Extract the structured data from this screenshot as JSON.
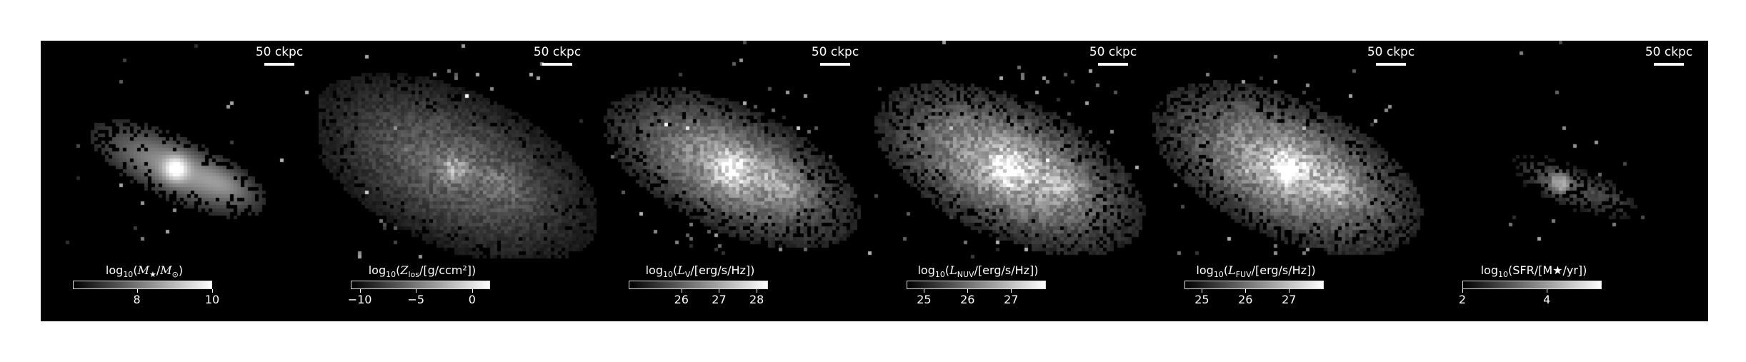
{
  "figure": {
    "panels": [
      {
        "scalebar_label": "50 ckpc",
        "colorbar": {
          "label_parts": [
            {
              "t": "log"
            },
            {
              "t": "10",
              "sub": true
            },
            {
              "t": "("
            },
            {
              "t": "M",
              "it": true
            },
            {
              "t": "★",
              "sub": true
            },
            {
              "t": "/"
            },
            {
              "t": "M",
              "it": true
            },
            {
              "t": "⊙",
              "sub": true
            },
            {
              "t": ")"
            }
          ],
          "min": 6.3,
          "max": 10,
          "ticks": [
            {
              "v": 8,
              "label": "8"
            },
            {
              "v": 10,
              "label": "10"
            }
          ]
        },
        "image": {
          "type": "stellar_mass",
          "center": [
            0.48,
            0.45
          ]
        }
      },
      {
        "scalebar_label": "50 ckpc",
        "colorbar": {
          "label_parts": [
            {
              "t": "log"
            },
            {
              "t": "10",
              "sub": true
            },
            {
              "t": "("
            },
            {
              "t": "Z",
              "it": true
            },
            {
              "t": "los",
              "sub": true
            },
            {
              "t": "/[g/ccm²])"
            }
          ],
          "min": -10.8,
          "max": 1.6,
          "ticks": [
            {
              "v": -10,
              "label": "−10"
            },
            {
              "v": -5,
              "label": "−5"
            },
            {
              "v": 0,
              "label": "0"
            }
          ]
        },
        "image": {
          "type": "metal_column",
          "center": [
            0.48,
            0.45
          ]
        }
      },
      {
        "scalebar_label": "50 ckpc",
        "colorbar": {
          "label_parts": [
            {
              "t": "log"
            },
            {
              "t": "10",
              "sub": true
            },
            {
              "t": "("
            },
            {
              "t": "L",
              "it": true
            },
            {
              "t": "V",
              "sub": true
            },
            {
              "t": "/[erg/s/Hz])"
            }
          ],
          "min": 24.6,
          "max": 28.3,
          "ticks": [
            {
              "v": 26,
              "label": "26"
            },
            {
              "v": 27,
              "label": "27"
            },
            {
              "v": 28,
              "label": "28"
            }
          ]
        },
        "image": {
          "type": "lum_v",
          "center": [
            0.48,
            0.45
          ]
        }
      },
      {
        "scalebar_label": "50 ckpc",
        "colorbar": {
          "label_parts": [
            {
              "t": "log"
            },
            {
              "t": "10",
              "sub": true
            },
            {
              "t": "("
            },
            {
              "t": "L",
              "it": true
            },
            {
              "t": "NUV",
              "sub": true
            },
            {
              "t": "/[erg/s/Hz])"
            }
          ],
          "min": 24.6,
          "max": 27.8,
          "ticks": [
            {
              "v": 25,
              "label": "25"
            },
            {
              "v": 26,
              "label": "26"
            },
            {
              "v": 27,
              "label": "27"
            }
          ]
        },
        "image": {
          "type": "lum_nuv",
          "center": [
            0.48,
            0.45
          ]
        }
      },
      {
        "scalebar_label": "50 ckpc",
        "colorbar": {
          "label_parts": [
            {
              "t": "log"
            },
            {
              "t": "10",
              "sub": true
            },
            {
              "t": "("
            },
            {
              "t": "L",
              "it": true
            },
            {
              "t": "FUV",
              "sub": true
            },
            {
              "t": "/[erg/s/Hz])"
            }
          ],
          "min": 24.6,
          "max": 27.8,
          "ticks": [
            {
              "v": 25,
              "label": "25"
            },
            {
              "v": 26,
              "label": "26"
            },
            {
              "v": 27,
              "label": "27"
            }
          ]
        },
        "image": {
          "type": "lum_fuv",
          "center": [
            0.48,
            0.45
          ]
        }
      },
      {
        "scalebar_label": "50 ckpc",
        "colorbar": {
          "label_parts": [
            {
              "t": "log"
            },
            {
              "t": "10",
              "sub": true
            },
            {
              "t": "(SFR/[M★/yr])"
            }
          ],
          "min": 2,
          "max": 5.3,
          "ticks": [
            {
              "v": 2,
              "label": "2"
            },
            {
              "v": 4,
              "label": "4"
            }
          ]
        },
        "image": {
          "type": "sfr",
          "center": [
            0.46,
            0.5
          ]
        }
      }
    ]
  }
}
